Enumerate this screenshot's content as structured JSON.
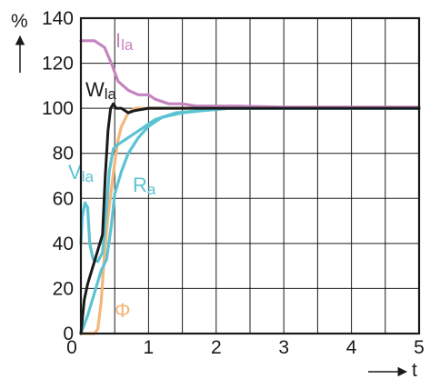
{
  "chart_data": {
    "type": "line",
    "xlim": [
      0,
      5
    ],
    "ylim": [
      0,
      140
    ],
    "x_ticks": [
      "0",
      "1",
      "2",
      "3",
      "4",
      "5"
    ],
    "y_ticks": [
      "0",
      "20",
      "40",
      "60",
      "80",
      "100",
      "120",
      "140"
    ],
    "x_unit": "t",
    "y_unit": "%",
    "grid": true,
    "series": [
      {
        "name": "Ila",
        "color": "#c584c0",
        "points": [
          [
            0,
            130
          ],
          [
            0.2,
            130
          ],
          [
            0.35,
            127
          ],
          [
            0.45,
            120
          ],
          [
            0.55,
            112
          ],
          [
            0.7,
            108
          ],
          [
            0.85,
            106
          ],
          [
            1.0,
            106
          ],
          [
            1.1,
            104
          ],
          [
            1.3,
            102
          ],
          [
            1.5,
            102
          ],
          [
            1.7,
            101
          ],
          [
            2.0,
            101
          ],
          [
            2.3,
            101
          ],
          [
            3.0,
            100.5
          ],
          [
            4.0,
            100.5
          ],
          [
            5.0,
            100.5
          ]
        ]
      },
      {
        "name": "Wla",
        "color": "#1a1a1a",
        "points": [
          [
            0,
            0
          ],
          [
            0.05,
            15
          ],
          [
            0.1,
            22
          ],
          [
            0.2,
            32
          ],
          [
            0.28,
            40
          ],
          [
            0.32,
            44
          ],
          [
            0.36,
            70
          ],
          [
            0.4,
            90
          ],
          [
            0.44,
            100
          ],
          [
            0.48,
            102
          ],
          [
            0.52,
            100
          ],
          [
            0.6,
            100
          ],
          [
            0.7,
            98
          ],
          [
            0.8,
            99
          ],
          [
            1.0,
            100
          ],
          [
            1.5,
            100
          ],
          [
            2.0,
            100
          ],
          [
            3.0,
            100
          ],
          [
            4.0,
            100
          ],
          [
            5.0,
            100
          ]
        ]
      },
      {
        "name": "Vla",
        "color": "#5bc3d2",
        "points": [
          [
            0,
            40
          ],
          [
            0.02,
            52
          ],
          [
            0.06,
            58
          ],
          [
            0.1,
            56
          ],
          [
            0.13,
            40
          ],
          [
            0.18,
            33
          ],
          [
            0.25,
            32
          ],
          [
            0.32,
            36
          ],
          [
            0.38,
            56
          ],
          [
            0.42,
            72
          ],
          [
            0.48,
            82
          ],
          [
            0.55,
            84
          ],
          [
            0.7,
            87
          ],
          [
            0.9,
            91
          ],
          [
            1.1,
            95
          ],
          [
            1.4,
            98
          ],
          [
            1.8,
            99
          ],
          [
            2.2,
            100
          ],
          [
            3.0,
            100
          ],
          [
            4.0,
            100
          ],
          [
            5.0,
            100
          ]
        ]
      },
      {
        "name": "Ra",
        "color": "#5bc3d2",
        "points": [
          [
            0,
            0
          ],
          [
            0.1,
            8
          ],
          [
            0.2,
            18
          ],
          [
            0.3,
            28
          ],
          [
            0.38,
            33
          ],
          [
            0.45,
            48
          ],
          [
            0.5,
            62
          ],
          [
            0.6,
            72
          ],
          [
            0.7,
            80
          ],
          [
            0.85,
            87
          ],
          [
            1.0,
            92
          ],
          [
            1.2,
            96
          ],
          [
            1.5,
            98
          ],
          [
            1.8,
            99
          ],
          [
            2.2,
            100
          ],
          [
            3.0,
            100
          ],
          [
            4.0,
            100
          ],
          [
            5.0,
            100
          ]
        ]
      },
      {
        "name": "Φ",
        "color": "#f5b77b",
        "points": [
          [
            0,
            0
          ],
          [
            0.2,
            0
          ],
          [
            0.25,
            2
          ],
          [
            0.3,
            14
          ],
          [
            0.35,
            36
          ],
          [
            0.4,
            52
          ],
          [
            0.45,
            64
          ],
          [
            0.5,
            76
          ],
          [
            0.55,
            86
          ],
          [
            0.6,
            92
          ],
          [
            0.7,
            98
          ],
          [
            0.8,
            100
          ],
          [
            1.0,
            100
          ],
          [
            2.0,
            100
          ],
          [
            3.0,
            100
          ],
          [
            4.0,
            100
          ],
          [
            5.0,
            100
          ]
        ]
      }
    ],
    "labels": [
      {
        "series": "Ila",
        "main": "I",
        "sub": "la"
      },
      {
        "series": "Wla",
        "main": "W",
        "sub": "la"
      },
      {
        "series": "Vla",
        "main": "V",
        "sub": "la"
      },
      {
        "series": "Ra",
        "main": "R",
        "sub": "a"
      },
      {
        "series": "Φ",
        "main": "Φ",
        "sub": ""
      }
    ]
  }
}
